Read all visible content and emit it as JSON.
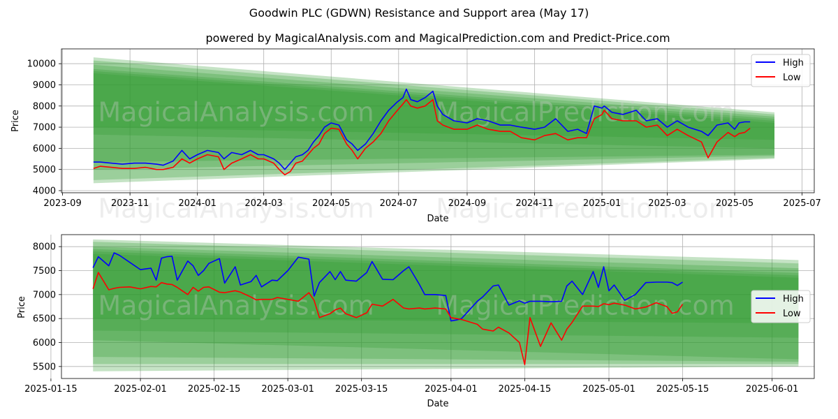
{
  "figure": {
    "title": "Goodwin PLC (GDWN) Resistance and Support area (May 17)",
    "subtitle": "powered by MagicalAnalysis.com and MagicalPrediction.com and Predict-Price.com",
    "watermark_left": "MagicalAnalysis.com",
    "watermark_right": "MagicalPrediction.com"
  },
  "colors": {
    "high": "#0000ff",
    "low": "#ff0000",
    "band": "#2e9a2e",
    "grid": "#b0b0b0"
  },
  "chart_data": [
    {
      "type": "line",
      "name": "full-period",
      "xlabel": "Date",
      "ylabel": "Price",
      "grid": true,
      "legend": "top-right",
      "xlim": [
        "2023-08-31",
        "2025-07-12"
      ],
      "ylim": [
        3900,
        10700
      ],
      "x_ticks": [
        "2023-09",
        "2023-11",
        "2024-01",
        "2024-03",
        "2024-05",
        "2024-07",
        "2024-09",
        "2024-11",
        "2025-01",
        "2025-03",
        "2025-05",
        "2025-07"
      ],
      "x_tick_dates": [
        "2023-09-01",
        "2023-11-01",
        "2024-01-01",
        "2024-03-01",
        "2024-05-01",
        "2024-07-01",
        "2024-09-01",
        "2024-11-01",
        "2025-01-01",
        "2025-03-01",
        "2025-05-01",
        "2025-07-01"
      ],
      "y_ticks": [
        4000,
        5000,
        6000,
        7000,
        8000,
        9000,
        10000
      ],
      "bands": [
        {
          "x": [
            "2023-09-29",
            "2025-06-06"
          ],
          "upper": [
            10300,
            7700
          ],
          "lower": [
            4350,
            5500
          ]
        },
        {
          "x": [
            "2023-09-29",
            "2025-06-06"
          ],
          "upper": [
            10150,
            7600
          ],
          "lower": [
            4500,
            5550
          ]
        },
        {
          "x": [
            "2023-09-29",
            "2025-06-06"
          ],
          "upper": [
            9950,
            7500
          ],
          "lower": [
            5000,
            5650
          ]
        },
        {
          "x": [
            "2023-09-29",
            "2025-06-06"
          ],
          "upper": [
            9750,
            7400
          ],
          "lower": [
            5350,
            5700
          ]
        },
        {
          "x": [
            "2023-09-29",
            "2025-06-06"
          ],
          "upper": [
            9650,
            7300
          ],
          "lower": [
            6650,
            6000
          ]
        },
        {
          "x": [
            "2023-09-29",
            "2025-06-06"
          ],
          "upper": [
            9550,
            7200
          ],
          "lower": [
            7000,
            6400
          ]
        }
      ],
      "series": [
        {
          "name": "High",
          "x": [
            "2023-09-29",
            "2023-10-05",
            "2023-10-15",
            "2023-10-25",
            "2023-11-05",
            "2023-11-15",
            "2023-11-25",
            "2023-12-01",
            "2023-12-10",
            "2023-12-18",
            "2023-12-25",
            "2024-01-01",
            "2024-01-10",
            "2024-01-20",
            "2024-01-25",
            "2024-02-01",
            "2024-02-10",
            "2024-02-18",
            "2024-02-25",
            "2024-03-01",
            "2024-03-10",
            "2024-03-15",
            "2024-03-20",
            "2024-03-25",
            "2024-03-30",
            "2024-04-05",
            "2024-04-10",
            "2024-04-15",
            "2024-04-20",
            "2024-04-25",
            "2024-05-01",
            "2024-05-08",
            "2024-05-15",
            "2024-05-20",
            "2024-05-25",
            "2024-06-01",
            "2024-06-08",
            "2024-06-15",
            "2024-06-22",
            "2024-06-30",
            "2024-07-05",
            "2024-07-08",
            "2024-07-12",
            "2024-07-18",
            "2024-07-25",
            "2024-08-01",
            "2024-08-05",
            "2024-08-10",
            "2024-08-20",
            "2024-09-01",
            "2024-09-10",
            "2024-09-20",
            "2024-10-01",
            "2024-10-10",
            "2024-10-20",
            "2024-11-01",
            "2024-11-10",
            "2024-11-20",
            "2024-12-01",
            "2024-12-10",
            "2024-12-18",
            "2024-12-25",
            "2025-01-01",
            "2025-01-03",
            "2025-01-10",
            "2025-01-20",
            "2025-02-01",
            "2025-02-10",
            "2025-02-20",
            "2025-03-01",
            "2025-03-10",
            "2025-03-20",
            "2025-04-01",
            "2025-04-07",
            "2025-04-15",
            "2025-04-25",
            "2025-05-01",
            "2025-05-05",
            "2025-05-10",
            "2025-05-15"
          ],
          "y": [
            5350,
            5350,
            5300,
            5250,
            5300,
            5300,
            5250,
            5200,
            5400,
            5900,
            5500,
            5700,
            5900,
            5800,
            5500,
            5800,
            5700,
            5900,
            5700,
            5700,
            5500,
            5300,
            5000,
            5300,
            5600,
            5700,
            5900,
            6300,
            6600,
            7000,
            7200,
            7100,
            6400,
            6200,
            5900,
            6200,
            6700,
            7300,
            7800,
            8200,
            8400,
            8800,
            8300,
            8200,
            8400,
            8700,
            8000,
            7600,
            7300,
            7200,
            7400,
            7300,
            7100,
            7100,
            7000,
            6900,
            7000,
            7400,
            6800,
            6900,
            6700,
            8000,
            7900,
            8000,
            7700,
            7600,
            7800,
            7300,
            7400,
            7000,
            7300,
            7000,
            6800,
            6600,
            7100,
            7200,
            6900,
            7200,
            7250,
            7250
          ]
        },
        {
          "name": "Low",
          "x": [
            "2023-09-29",
            "2023-10-05",
            "2023-10-15",
            "2023-10-25",
            "2023-11-05",
            "2023-11-15",
            "2023-11-25",
            "2023-12-01",
            "2023-12-10",
            "2023-12-18",
            "2023-12-25",
            "2024-01-01",
            "2024-01-10",
            "2024-01-20",
            "2024-01-25",
            "2024-02-01",
            "2024-02-10",
            "2024-02-18",
            "2024-02-25",
            "2024-03-01",
            "2024-03-10",
            "2024-03-15",
            "2024-03-20",
            "2024-03-25",
            "2024-03-30",
            "2024-04-05",
            "2024-04-10",
            "2024-04-15",
            "2024-04-20",
            "2024-04-25",
            "2024-05-01",
            "2024-05-08",
            "2024-05-15",
            "2024-05-20",
            "2024-05-25",
            "2024-06-01",
            "2024-06-08",
            "2024-06-15",
            "2024-06-22",
            "2024-06-30",
            "2024-07-05",
            "2024-07-08",
            "2024-07-12",
            "2024-07-18",
            "2024-07-25",
            "2024-08-01",
            "2024-08-05",
            "2024-08-10",
            "2024-08-20",
            "2024-09-01",
            "2024-09-10",
            "2024-09-20",
            "2024-10-01",
            "2024-10-10",
            "2024-10-20",
            "2024-11-01",
            "2024-11-10",
            "2024-11-20",
            "2024-12-01",
            "2024-12-10",
            "2024-12-18",
            "2024-12-25",
            "2025-01-01",
            "2025-01-03",
            "2025-01-10",
            "2025-01-20",
            "2025-02-01",
            "2025-02-10",
            "2025-02-20",
            "2025-03-01",
            "2025-03-10",
            "2025-03-20",
            "2025-04-01",
            "2025-04-07",
            "2025-04-15",
            "2025-04-25",
            "2025-05-01",
            "2025-05-05",
            "2025-05-10",
            "2025-05-15"
          ],
          "y": [
            5050,
            5150,
            5100,
            5050,
            5050,
            5100,
            5000,
            5000,
            5100,
            5500,
            5300,
            5500,
            5700,
            5600,
            5000,
            5300,
            5500,
            5700,
            5500,
            5500,
            5300,
            5000,
            4750,
            4900,
            5300,
            5400,
            5700,
            6000,
            6200,
            6700,
            6950,
            6900,
            6200,
            5900,
            5500,
            6000,
            6300,
            6700,
            7300,
            7800,
            8100,
            8300,
            8000,
            7900,
            8000,
            8300,
            7300,
            7100,
            6900,
            6900,
            7100,
            6900,
            6800,
            6800,
            6500,
            6400,
            6600,
            6700,
            6400,
            6500,
            6500,
            7400,
            7600,
            7800,
            7400,
            7300,
            7300,
            7000,
            7100,
            6600,
            6900,
            6600,
            6300,
            5550,
            6300,
            6750,
            6550,
            6700,
            6750,
            6950
          ]
        }
      ]
    },
    {
      "type": "line",
      "name": "recent-zoom",
      "xlabel": "Date",
      "ylabel": "Price",
      "grid": true,
      "legend": "center-right",
      "xlim": [
        "2025-01-17",
        "2025-06-09"
      ],
      "ylim": [
        5250,
        8250
      ],
      "x_ticks": [
        "2025-01-15",
        "2025-02-01",
        "2025-02-15",
        "2025-03-01",
        "2025-03-15",
        "2025-04-01",
        "2025-04-15",
        "2025-05-01",
        "2025-05-15",
        "2025-06-01"
      ],
      "y_ticks": [
        5500,
        6000,
        6500,
        7000,
        7500,
        8000
      ],
      "bands": [
        {
          "x": [
            "2025-01-23",
            "2025-06-06"
          ],
          "upper": [
            8150,
            7720
          ],
          "lower": [
            5400,
            5500
          ]
        },
        {
          "x": [
            "2025-01-23",
            "2025-06-06"
          ],
          "upper": [
            8100,
            7650
          ],
          "lower": [
            5550,
            5550
          ]
        },
        {
          "x": [
            "2025-01-23",
            "2025-06-06"
          ],
          "upper": [
            8000,
            7550
          ],
          "lower": [
            5700,
            5600
          ]
        },
        {
          "x": [
            "2025-01-23",
            "2025-06-06"
          ],
          "upper": [
            7950,
            7450
          ],
          "lower": [
            6050,
            5650
          ]
        },
        {
          "x": [
            "2025-01-23",
            "2025-06-06"
          ],
          "upper": [
            7900,
            7400
          ],
          "lower": [
            6250,
            6100
          ]
        },
        {
          "x": [
            "2025-01-23",
            "2025-06-06"
          ],
          "upper": [
            7850,
            7350
          ],
          "lower": [
            6500,
            6400
          ]
        }
      ],
      "series": [
        {
          "name": "High",
          "x": [
            "2025-01-23",
            "2025-01-24",
            "2025-01-26",
            "2025-01-27",
            "2025-01-28",
            "2025-01-30",
            "2025-02-01",
            "2025-02-03",
            "2025-02-04",
            "2025-02-05",
            "2025-02-06",
            "2025-02-07",
            "2025-02-08",
            "2025-02-10",
            "2025-02-11",
            "2025-02-12",
            "2025-02-13",
            "2025-02-14",
            "2025-02-16",
            "2025-02-17",
            "2025-02-19",
            "2025-02-20",
            "2025-02-22",
            "2025-02-23",
            "2025-02-24",
            "2025-02-26",
            "2025-02-27",
            "2025-03-01",
            "2025-03-03",
            "2025-03-05",
            "2025-03-06",
            "2025-03-07",
            "2025-03-09",
            "2025-03-10",
            "2025-03-11",
            "2025-03-12",
            "2025-03-14",
            "2025-03-16",
            "2025-03-17",
            "2025-03-19",
            "2025-03-21",
            "2025-03-23",
            "2025-03-24",
            "2025-03-26",
            "2025-03-27",
            "2025-03-29",
            "2025-03-31",
            "2025-04-01",
            "2025-04-02",
            "2025-04-03",
            "2025-04-06",
            "2025-04-07",
            "2025-04-09",
            "2025-04-10",
            "2025-04-12",
            "2025-04-14",
            "2025-04-15",
            "2025-04-16",
            "2025-04-18",
            "2025-04-20",
            "2025-04-22",
            "2025-04-23",
            "2025-04-24",
            "2025-04-26",
            "2025-04-28",
            "2025-04-29",
            "2025-04-30",
            "2025-05-01",
            "2025-05-02",
            "2025-05-04",
            "2025-05-06",
            "2025-05-08",
            "2025-05-10",
            "2025-05-12",
            "2025-05-13",
            "2025-05-14",
            "2025-05-15"
          ],
          "y": [
            7560,
            7790,
            7600,
            7870,
            7820,
            7670,
            7520,
            7550,
            7300,
            7760,
            7790,
            7800,
            7300,
            7700,
            7600,
            7400,
            7500,
            7650,
            7750,
            7240,
            7580,
            7200,
            7270,
            7400,
            7160,
            7300,
            7290,
            7500,
            7780,
            7740,
            6970,
            7250,
            7480,
            7310,
            7480,
            7300,
            7280,
            7460,
            7690,
            7320,
            7310,
            7500,
            7580,
            7210,
            7000,
            7000,
            6980,
            6450,
            6470,
            6500,
            6860,
            6950,
            7180,
            7200,
            6780,
            6870,
            6820,
            6860,
            6860,
            6850,
            6860,
            7180,
            7280,
            7000,
            7480,
            7150,
            7580,
            7080,
            7200,
            6880,
            7000,
            7250,
            7260,
            7260,
            7250,
            7190,
            7260
          ]
        },
        {
          "name": "Low",
          "x": [
            "2025-01-23",
            "2025-01-24",
            "2025-01-26",
            "2025-01-27",
            "2025-01-28",
            "2025-01-30",
            "2025-02-01",
            "2025-02-03",
            "2025-02-04",
            "2025-02-05",
            "2025-02-06",
            "2025-02-07",
            "2025-02-08",
            "2025-02-10",
            "2025-02-11",
            "2025-02-12",
            "2025-02-13",
            "2025-02-14",
            "2025-02-16",
            "2025-02-17",
            "2025-02-19",
            "2025-02-20",
            "2025-02-22",
            "2025-02-23",
            "2025-02-24",
            "2025-02-26",
            "2025-02-27",
            "2025-03-01",
            "2025-03-03",
            "2025-03-05",
            "2025-03-06",
            "2025-03-07",
            "2025-03-09",
            "2025-03-10",
            "2025-03-11",
            "2025-03-12",
            "2025-03-14",
            "2025-03-16",
            "2025-03-17",
            "2025-03-19",
            "2025-03-21",
            "2025-03-23",
            "2025-03-24",
            "2025-03-26",
            "2025-03-27",
            "2025-03-29",
            "2025-03-31",
            "2025-04-01",
            "2025-04-02",
            "2025-04-03",
            "2025-04-06",
            "2025-04-07",
            "2025-04-09",
            "2025-04-10",
            "2025-04-12",
            "2025-04-14",
            "2025-04-15",
            "2025-04-16",
            "2025-04-18",
            "2025-04-20",
            "2025-04-22",
            "2025-04-23",
            "2025-04-24",
            "2025-04-26",
            "2025-04-28",
            "2025-04-29",
            "2025-04-30",
            "2025-05-01",
            "2025-05-02",
            "2025-05-04",
            "2025-05-06",
            "2025-05-08",
            "2025-05-10",
            "2025-05-12",
            "2025-05-13",
            "2025-05-14",
            "2025-05-15"
          ],
          "y": [
            7120,
            7460,
            7100,
            7130,
            7150,
            7160,
            7120,
            7170,
            7160,
            7250,
            7220,
            7210,
            7150,
            7000,
            7150,
            7070,
            7150,
            7160,
            7050,
            7040,
            7080,
            7050,
            6950,
            6890,
            6900,
            6900,
            6940,
            6900,
            6860,
            7040,
            6880,
            6520,
            6600,
            6680,
            6720,
            6600,
            6520,
            6620,
            6800,
            6760,
            6900,
            6720,
            6700,
            6720,
            6700,
            6720,
            6700,
            6520,
            6500,
            6480,
            6380,
            6280,
            6240,
            6320,
            6200,
            6000,
            5540,
            6520,
            5920,
            6410,
            6050,
            6280,
            6420,
            6760,
            6760,
            6750,
            6810,
            6790,
            6820,
            6780,
            6700,
            6740,
            6830,
            6750,
            6610,
            6640,
            6800
          ]
        }
      ]
    }
  ]
}
